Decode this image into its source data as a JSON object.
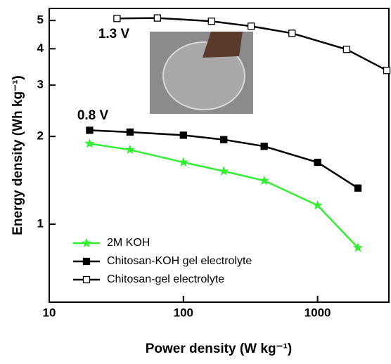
{
  "chart_data": {
    "type": "line",
    "xlabel": "Power density (W kg⁻¹)",
    "ylabel": "Energy density (Wh kg⁻¹)",
    "xscale": "log",
    "yscale": "log",
    "xlim": [
      10,
      3400
    ],
    "ylim": [
      0.54,
      5.5
    ],
    "xticks": [
      10,
      100,
      1000
    ],
    "yticks": [
      1,
      2,
      3,
      4,
      5
    ],
    "annotations": [
      "1.3 V",
      "0.8 V"
    ],
    "legend": "lower left",
    "series": [
      {
        "name": "2M KOH",
        "color": "#33ee33",
        "marker": "star",
        "x": [
          20,
          40,
          100,
          200,
          400,
          1000,
          2000
        ],
        "values": [
          1.89,
          1.8,
          1.63,
          1.52,
          1.41,
          1.16,
          0.83
        ]
      },
      {
        "name": "Chitosan-KOH gel electrolyte",
        "color": "#000000",
        "marker": "square",
        "x": [
          20,
          40,
          100,
          200,
          400,
          1000,
          2000
        ],
        "values": [
          2.1,
          2.07,
          2.02,
          1.95,
          1.85,
          1.63,
          1.33
        ]
      },
      {
        "name": "Chitosan-gel electrolyte",
        "color": "#000000",
        "marker": "open-square",
        "x": [
          32,
          64,
          162,
          320,
          645,
          1645,
          3280
        ],
        "values": [
          5.08,
          5.1,
          4.97,
          4.78,
          4.52,
          3.98,
          3.37
        ]
      }
    ]
  }
}
